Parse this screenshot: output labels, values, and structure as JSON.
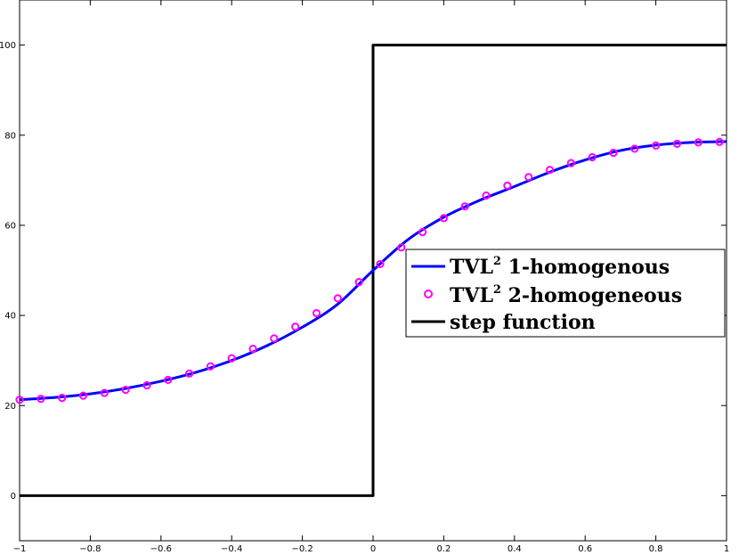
{
  "chart_data": {
    "type": "line",
    "xlim": [
      -1,
      1
    ],
    "ylim": [
      -10,
      110
    ],
    "x_ticks": [
      -1,
      -0.8,
      -0.6,
      -0.4,
      -0.2,
      0,
      0.2,
      0.4,
      0.6,
      0.8,
      1
    ],
    "x_tick_labels": [
      "−1",
      "−0.8",
      "−0.6",
      "−0.4",
      "−0.2",
      "0",
      "0.2",
      "0.4",
      "0.6",
      "0.8",
      "1"
    ],
    "y_ticks": [
      0,
      20,
      40,
      60,
      80,
      100
    ],
    "y_tick_labels": [
      "0",
      "20",
      "40",
      "60",
      "80",
      "100"
    ],
    "grid": false,
    "legend_position": "right",
    "series": [
      {
        "name": "TVL² 1-homogenous",
        "style": "line",
        "color": "#0000ff",
        "x": [
          -1.0,
          -0.9,
          -0.8,
          -0.7,
          -0.6,
          -0.5,
          -0.4,
          -0.3,
          -0.2,
          -0.1,
          0.0,
          0.1,
          0.2,
          0.3,
          0.4,
          0.5,
          0.6,
          0.7,
          0.8,
          0.9,
          1.0
        ],
        "y": [
          21.3,
          21.8,
          22.6,
          23.8,
          25.4,
          27.4,
          30.0,
          33.3,
          37.4,
          42.5,
          50.0,
          56.9,
          61.8,
          65.5,
          68.6,
          71.8,
          74.5,
          76.6,
          77.8,
          78.4,
          78.6
        ]
      },
      {
        "name": "TVL² 2-homogeneous",
        "style": "markers",
        "color": "#ff00ff",
        "x": [
          -1.0,
          -0.94,
          -0.88,
          -0.82,
          -0.76,
          -0.7,
          -0.64,
          -0.58,
          -0.52,
          -0.46,
          -0.4,
          -0.34,
          -0.28,
          -0.22,
          -0.16,
          -0.1,
          -0.04,
          0.02,
          0.08,
          0.14,
          0.2,
          0.26,
          0.32,
          0.38,
          0.44,
          0.5,
          0.56,
          0.62,
          0.68,
          0.74,
          0.8,
          0.86,
          0.92,
          0.98
        ],
        "y": [
          21.3,
          21.5,
          21.7,
          22.2,
          22.8,
          23.5,
          24.5,
          25.7,
          27.1,
          28.7,
          30.5,
          32.6,
          34.9,
          37.5,
          40.5,
          43.8,
          47.4,
          51.4,
          55.1,
          58.5,
          61.6,
          64.2,
          66.6,
          68.8,
          70.7,
          72.3,
          73.8,
          75.1,
          76.1,
          77.0,
          77.7,
          78.1,
          78.4,
          78.5
        ]
      },
      {
        "name": "step function",
        "style": "line",
        "color": "#000000",
        "x": [
          -1,
          0,
          0,
          1
        ],
        "y": [
          0,
          0,
          100,
          100
        ]
      }
    ]
  },
  "legend": {
    "items": [
      {
        "prefix": "TVL",
        "sup": "2",
        "suffix": " 1-homogenous",
        "color": "#0000ff",
        "style": "line"
      },
      {
        "prefix": "TVL",
        "sup": "2",
        "suffix": " 2-homogeneous",
        "color": "#ff00ff",
        "style": "markers"
      },
      {
        "prefix": "step function",
        "sup": "",
        "suffix": "",
        "color": "#000000",
        "style": "line"
      }
    ]
  }
}
